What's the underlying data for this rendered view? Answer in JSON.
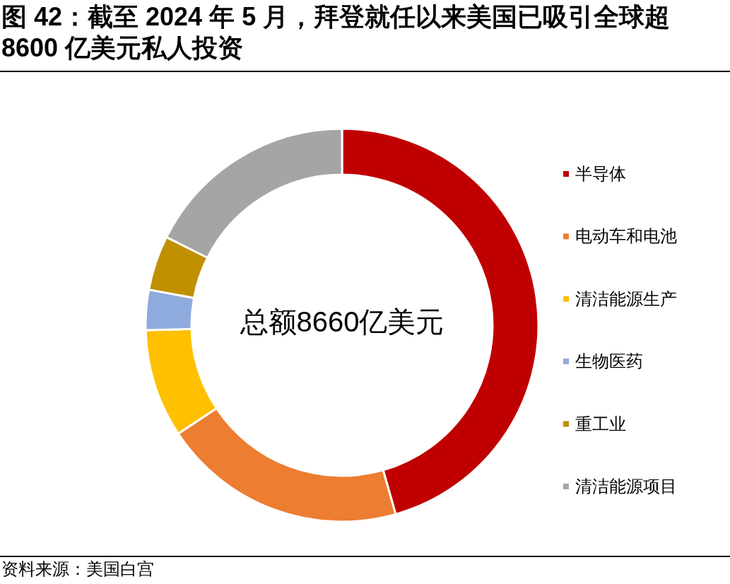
{
  "chart_data": {
    "type": "donut",
    "title": "图 42：截至 2024 年 5 月，拜登就任以来美国已吸引全球超 8600 亿美元私人投资",
    "categories": [
      "半导体",
      "电动车和电池",
      "清洁能源生产",
      "生物医药",
      "重工业",
      "清洁能源项目"
    ],
    "values": [
      45.6,
      20.1,
      8.9,
      3.3,
      4.5,
      17.6
    ],
    "colors": [
      "#c00000",
      "#ed7d31",
      "#ffc000",
      "#8faadc",
      "#bf9000",
      "#a5a5a5"
    ],
    "legend": "right",
    "annotations": [
      "总额8660亿美元",
      "资料来源：美国白宫"
    ]
  }
}
